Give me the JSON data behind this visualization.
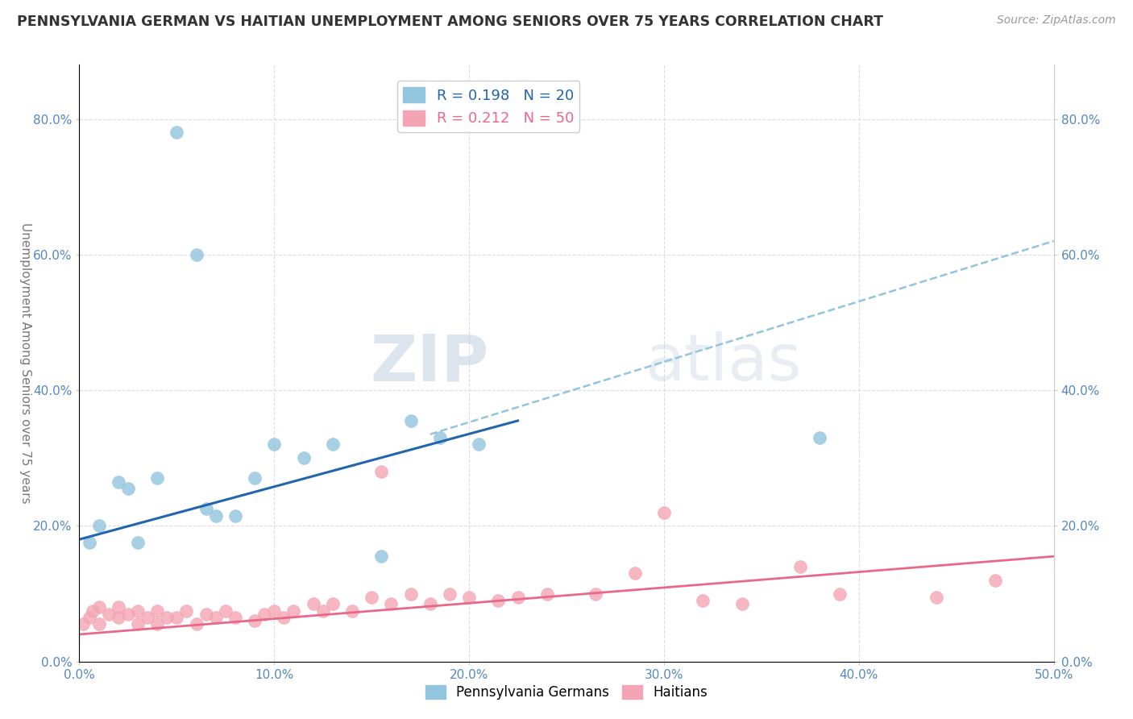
{
  "title": "PENNSYLVANIA GERMAN VS HAITIAN UNEMPLOYMENT AMONG SENIORS OVER 75 YEARS CORRELATION CHART",
  "source": "Source: ZipAtlas.com",
  "xlabel_ticks": [
    "0.0%",
    "10.0%",
    "20.0%",
    "30.0%",
    "40.0%",
    "50.0%"
  ],
  "xlabel_vals": [
    0.0,
    0.1,
    0.2,
    0.3,
    0.4,
    0.5
  ],
  "ylabel_ticks": [
    "0.0%",
    "20.0%",
    "40.0%",
    "60.0%",
    "80.0%"
  ],
  "ylabel_vals": [
    0.0,
    0.2,
    0.4,
    0.6,
    0.8
  ],
  "ylabel_label": "Unemployment Among Seniors over 75 years",
  "legend_blue_label": "R = 0.198   N = 20",
  "legend_pink_label": "R = 0.212   N = 50",
  "blue_color": "#92C5DE",
  "pink_color": "#F4A5B5",
  "blue_line_color": "#2166AC",
  "pink_line_color": "#E8688A",
  "dashed_line_color": "#92C5DE",
  "watermark_zip": "ZIP",
  "watermark_atlas": "atlas",
  "blue_x": [
    0.005,
    0.01,
    0.02,
    0.025,
    0.03,
    0.04,
    0.05,
    0.06,
    0.065,
    0.07,
    0.08,
    0.09,
    0.1,
    0.115,
    0.13,
    0.155,
    0.17,
    0.185,
    0.205,
    0.38
  ],
  "blue_y": [
    0.175,
    0.2,
    0.265,
    0.255,
    0.175,
    0.27,
    0.78,
    0.6,
    0.225,
    0.215,
    0.215,
    0.27,
    0.32,
    0.3,
    0.32,
    0.155,
    0.355,
    0.33,
    0.32,
    0.33
  ],
  "blue_line_x0": 0.0,
  "blue_line_x1": 0.225,
  "blue_line_y0": 0.18,
  "blue_line_y1": 0.355,
  "dashed_line_x0": 0.18,
  "dashed_line_x1": 0.5,
  "dashed_line_y0": 0.335,
  "dashed_line_y1": 0.62,
  "pink_line_x0": 0.0,
  "pink_line_x1": 0.5,
  "pink_line_y0": 0.04,
  "pink_line_y1": 0.155,
  "pink_x": [
    0.002,
    0.005,
    0.007,
    0.01,
    0.01,
    0.015,
    0.02,
    0.02,
    0.025,
    0.03,
    0.03,
    0.035,
    0.04,
    0.04,
    0.045,
    0.05,
    0.055,
    0.06,
    0.065,
    0.07,
    0.075,
    0.08,
    0.09,
    0.095,
    0.1,
    0.105,
    0.11,
    0.12,
    0.125,
    0.13,
    0.14,
    0.15,
    0.155,
    0.16,
    0.17,
    0.18,
    0.19,
    0.2,
    0.215,
    0.225,
    0.24,
    0.265,
    0.285,
    0.3,
    0.32,
    0.34,
    0.37,
    0.39,
    0.44,
    0.47
  ],
  "pink_y": [
    0.055,
    0.065,
    0.075,
    0.055,
    0.08,
    0.07,
    0.065,
    0.08,
    0.07,
    0.055,
    0.075,
    0.065,
    0.055,
    0.075,
    0.065,
    0.065,
    0.075,
    0.055,
    0.07,
    0.065,
    0.075,
    0.065,
    0.06,
    0.07,
    0.075,
    0.065,
    0.075,
    0.085,
    0.075,
    0.085,
    0.075,
    0.095,
    0.28,
    0.085,
    0.1,
    0.085,
    0.1,
    0.095,
    0.09,
    0.095,
    0.1,
    0.1,
    0.13,
    0.22,
    0.09,
    0.085,
    0.14,
    0.1,
    0.095,
    0.12
  ],
  "xlim": [
    0.0,
    0.5
  ],
  "ylim": [
    0.0,
    0.88
  ]
}
